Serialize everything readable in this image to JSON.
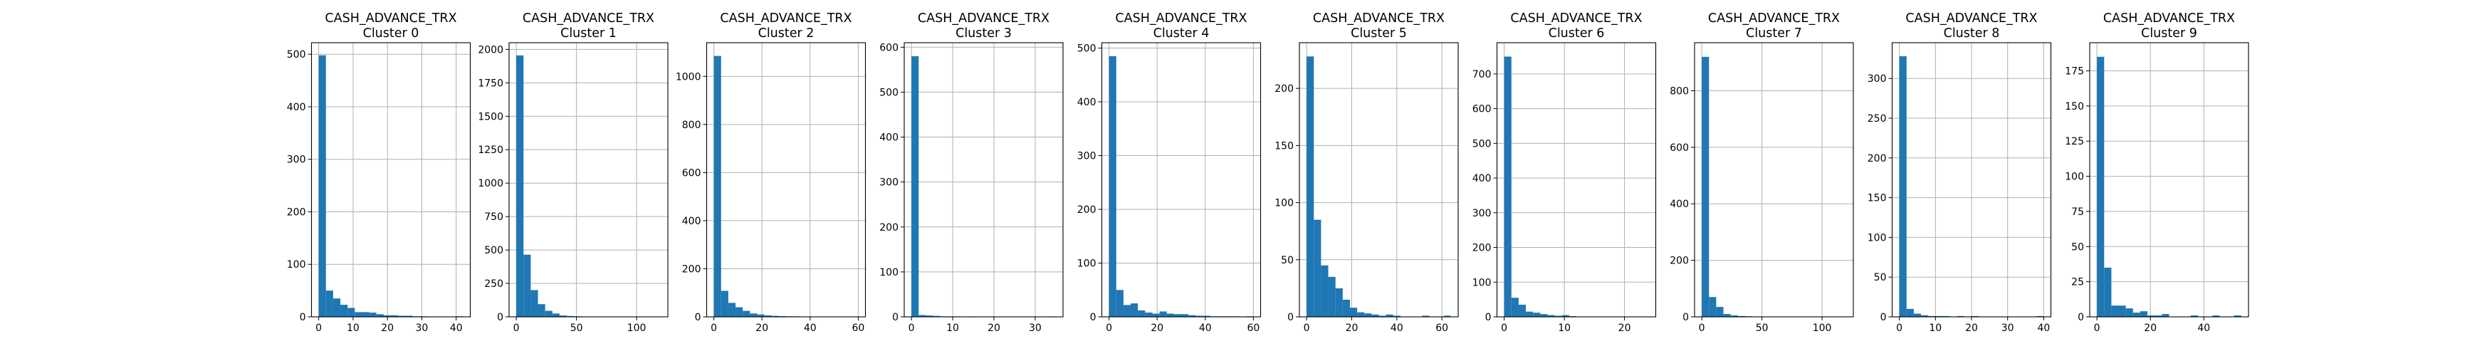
{
  "figure": {
    "bar_color": "#1f77b4",
    "grid": true
  },
  "chart_data": [
    {
      "type": "bar",
      "title": "CASH_ADVANCE_TRX",
      "subtitle": "Cluster 0",
      "bin_edges": [
        0,
        2.1,
        4.2,
        6.3,
        8.4,
        10.5,
        12.6,
        14.7,
        16.8,
        18.9,
        21.0,
        23.1,
        25.2,
        27.3,
        29.4,
        31.5,
        33.6,
        35.7,
        37.8,
        39.9,
        42.0
      ],
      "values": [
        498,
        50,
        35,
        23,
        17,
        9,
        9,
        8,
        5,
        3,
        3,
        2,
        2,
        1,
        1,
        0,
        0,
        0,
        0,
        1
      ],
      "xlim": [
        -2.1,
        44.1
      ],
      "ylim": [
        0,
        522
      ],
      "xticks": [
        0,
        10,
        20,
        30,
        40
      ],
      "yticks": [
        0,
        100,
        200,
        300,
        400,
        500
      ]
    },
    {
      "type": "bar",
      "title": "CASH_ADVANCE_TRX",
      "subtitle": "Cluster 1",
      "bin_edges": [
        0,
        6,
        12,
        18,
        24,
        30,
        36,
        42,
        48,
        54,
        60,
        66,
        72,
        78,
        84,
        90,
        96,
        102,
        108,
        114,
        120
      ],
      "values": [
        1955,
        465,
        200,
        95,
        45,
        25,
        10,
        6,
        4,
        3,
        2,
        1,
        1,
        1,
        0,
        0,
        0,
        0,
        0,
        1
      ],
      "xlim": [
        -6,
        126
      ],
      "ylim": [
        0,
        2050
      ],
      "xticks": [
        0,
        50,
        100
      ],
      "yticks": [
        0,
        250,
        500,
        750,
        1000,
        1250,
        1500,
        1750,
        2000
      ]
    },
    {
      "type": "bar",
      "title": "CASH_ADVANCE_TRX",
      "subtitle": "Cluster 2",
      "bin_edges": [
        0,
        3,
        6,
        9,
        12,
        15,
        18,
        21,
        24,
        27,
        30,
        33,
        36,
        39,
        42,
        45,
        48,
        51,
        54,
        57,
        60
      ],
      "values": [
        1085,
        108,
        58,
        40,
        25,
        14,
        10,
        6,
        4,
        3,
        2,
        2,
        1,
        1,
        1,
        0,
        0,
        1,
        0,
        1
      ],
      "xlim": [
        -3,
        63
      ],
      "ylim": [
        0,
        1140
      ],
      "xticks": [
        0,
        20,
        40,
        60
      ],
      "yticks": [
        0,
        200,
        400,
        600,
        800,
        1000
      ]
    },
    {
      "type": "bar",
      "title": "CASH_ADVANCE_TRX",
      "subtitle": "Cluster 3",
      "bin_edges": [
        0,
        1.75,
        3.5,
        5.25,
        7.0,
        8.75,
        10.5,
        12.25,
        14.0,
        15.75,
        17.5,
        19.25,
        21.0,
        22.75,
        24.5,
        26.25,
        28.0,
        29.75,
        31.5,
        33.25,
        35.0
      ],
      "values": [
        580,
        4,
        3,
        2,
        1,
        1,
        1,
        0,
        1,
        0,
        0,
        0,
        0,
        0,
        0,
        0,
        0,
        0,
        0,
        1
      ],
      "xlim": [
        -1.75,
        36.75
      ],
      "ylim": [
        0,
        610
      ],
      "xticks": [
        0,
        10,
        20,
        30
      ],
      "yticks": [
        0,
        100,
        200,
        300,
        400,
        500,
        600
      ]
    },
    {
      "type": "bar",
      "title": "CASH_ADVANCE_TRX",
      "subtitle": "Cluster 4",
      "bin_edges": [
        0,
        3,
        6,
        9,
        12,
        15,
        18,
        21,
        24,
        27,
        30,
        33,
        36,
        39,
        42,
        45,
        48,
        51,
        54,
        57,
        60
      ],
      "values": [
        485,
        50,
        22,
        25,
        12,
        8,
        6,
        10,
        6,
        5,
        5,
        3,
        2,
        2,
        1,
        1,
        1,
        1,
        0,
        1
      ],
      "xlim": [
        -3,
        63
      ],
      "ylim": [
        0,
        510
      ],
      "xticks": [
        0,
        20,
        40,
        60
      ],
      "yticks": [
        0,
        100,
        200,
        300,
        400,
        500
      ]
    },
    {
      "type": "bar",
      "title": "CASH_ADVANCE_TRX",
      "subtitle": "Cluster 5",
      "bin_edges": [
        0,
        3.2,
        6.4,
        9.6,
        12.8,
        16.0,
        19.2,
        22.4,
        25.6,
        28.8,
        32.0,
        35.2,
        38.4,
        41.6,
        44.8,
        48.0,
        51.2,
        54.4,
        57.6,
        60.8,
        64.0
      ],
      "values": [
        228,
        85,
        45,
        35,
        25,
        15,
        8,
        4,
        3,
        2,
        1,
        2,
        1,
        0,
        0,
        0,
        1,
        0,
        0,
        1
      ],
      "xlim": [
        -3.2,
        67.2
      ],
      "ylim": [
        0,
        240
      ],
      "xticks": [
        0,
        20,
        40,
        60
      ],
      "yticks": [
        0,
        50,
        100,
        150,
        200
      ]
    },
    {
      "type": "bar",
      "title": "CASH_ADVANCE_TRX",
      "subtitle": "Cluster 6",
      "bin_edges": [
        0,
        1.2,
        2.4,
        3.6,
        4.8,
        6.0,
        7.2,
        8.4,
        9.6,
        10.8,
        12.0,
        13.2,
        14.4,
        15.6,
        16.8,
        18.0,
        19.2,
        20.4,
        21.6,
        22.8,
        24.0
      ],
      "values": [
        750,
        55,
        35,
        15,
        12,
        8,
        5,
        3,
        5,
        2,
        1,
        1,
        0,
        0,
        0,
        0,
        0,
        0,
        0,
        1
      ],
      "xlim": [
        -1.2,
        25.2
      ],
      "ylim": [
        0,
        790
      ],
      "xticks": [
        0,
        10,
        20
      ],
      "yticks": [
        0,
        100,
        200,
        300,
        400,
        500,
        600,
        700
      ]
    },
    {
      "type": "bar",
      "title": "CASH_ADVANCE_TRX",
      "subtitle": "Cluster 7",
      "bin_edges": [
        0,
        6,
        12,
        18,
        24,
        30,
        36,
        42,
        48,
        54,
        60,
        66,
        72,
        78,
        84,
        90,
        96,
        102,
        108,
        114,
        120
      ],
      "values": [
        920,
        70,
        35,
        10,
        5,
        3,
        2,
        1,
        1,
        0,
        1,
        0,
        0,
        0,
        0,
        0,
        0,
        0,
        0,
        1
      ],
      "xlim": [
        -6,
        126
      ],
      "ylim": [
        0,
        970
      ],
      "xticks": [
        0,
        50,
        100
      ],
      "yticks": [
        0,
        200,
        400,
        600,
        800
      ]
    },
    {
      "type": "bar",
      "title": "CASH_ADVANCE_TRX",
      "subtitle": "Cluster 8",
      "bin_edges": [
        0,
        2,
        4,
        6,
        8,
        10,
        12,
        14,
        16,
        18,
        20,
        22,
        24,
        26,
        28,
        30,
        32,
        34,
        36,
        38,
        40
      ],
      "values": [
        328,
        10,
        4,
        2,
        1,
        1,
        1,
        0,
        1,
        0,
        1,
        0,
        0,
        0,
        0,
        0,
        0,
        0,
        0,
        1
      ],
      "xlim": [
        -2,
        42
      ],
      "ylim": [
        0,
        345
      ],
      "xticks": [
        0,
        10,
        20,
        30,
        40
      ],
      "yticks": [
        0,
        50,
        100,
        150,
        200,
        250,
        300
      ]
    },
    {
      "type": "bar",
      "title": "CASH_ADVANCE_TRX",
      "subtitle": "Cluster 9",
      "bin_edges": [
        0,
        2.7,
        5.4,
        8.1,
        10.8,
        13.5,
        16.2,
        18.9,
        21.6,
        24.3,
        27.0,
        29.7,
        32.4,
        35.1,
        37.8,
        40.5,
        43.2,
        45.9,
        48.6,
        51.3,
        54.0
      ],
      "values": [
        185,
        35,
        8,
        8,
        6,
        3,
        4,
        1,
        1,
        2,
        0,
        0,
        0,
        1,
        0,
        0,
        1,
        0,
        0,
        1
      ],
      "xlim": [
        -2.7,
        56.7
      ],
      "ylim": [
        0,
        195
      ],
      "xticks": [
        0,
        20,
        40
      ],
      "yticks": [
        0,
        25,
        50,
        75,
        100,
        125,
        150,
        175
      ]
    }
  ]
}
